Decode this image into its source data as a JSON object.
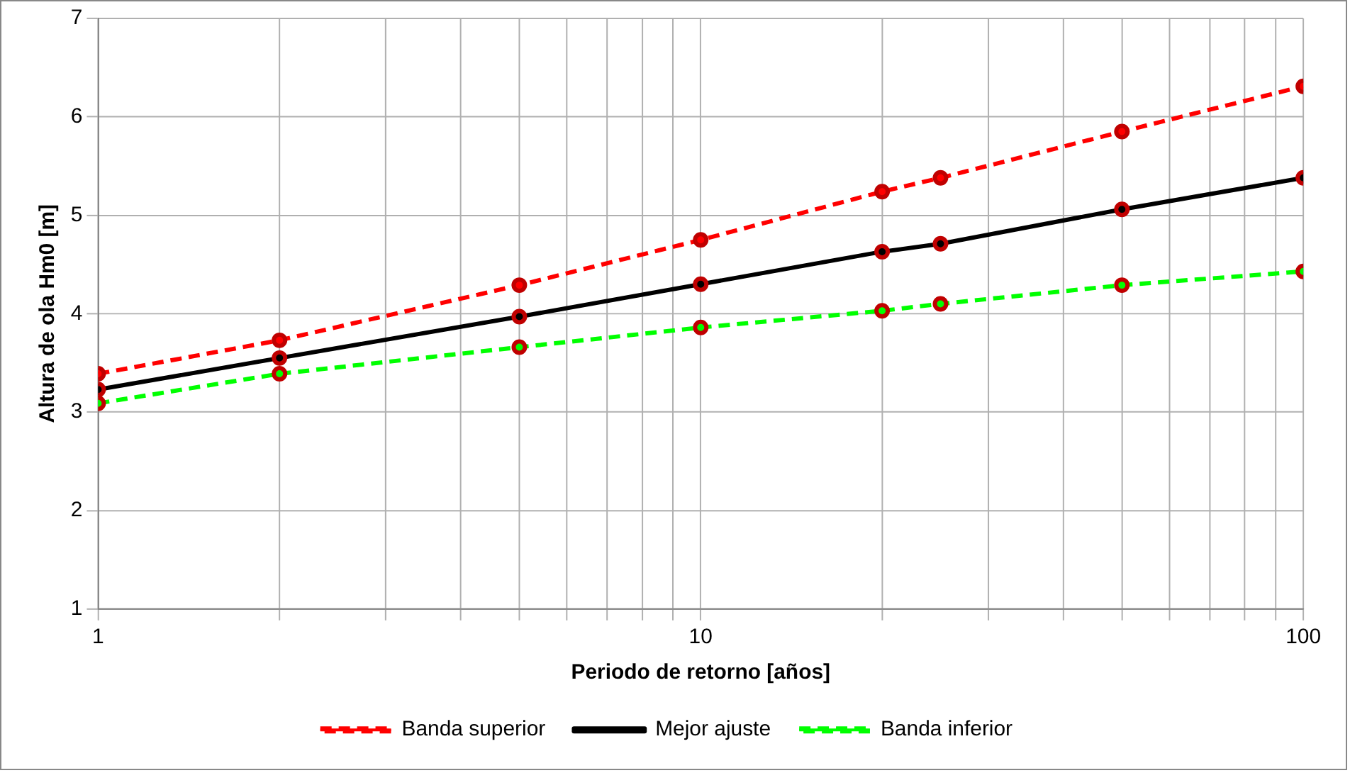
{
  "chart_data": {
    "type": "line",
    "xlabel": "Periodo de retorno [años]",
    "ylabel": "Altura de ola Hm0 [m]",
    "x": [
      1,
      2,
      5,
      10,
      20,
      25,
      50,
      100
    ],
    "series": [
      {
        "name": "Banda superior",
        "color": "#ff0000",
        "line_style": "dashed",
        "values": [
          3.39,
          3.73,
          4.29,
          4.75,
          5.24,
          5.38,
          5.85,
          6.31
        ]
      },
      {
        "name": "Mejor ajuste",
        "color": "#000000",
        "line_style": "solid",
        "values": [
          3.23,
          3.55,
          3.97,
          4.3,
          4.63,
          4.71,
          5.06,
          5.38
        ]
      },
      {
        "name": "Banda inferior",
        "color": "#00ff00",
        "line_style": "dashed",
        "values": [
          3.09,
          3.39,
          3.66,
          3.86,
          4.03,
          4.1,
          4.29,
          4.43
        ]
      }
    ],
    "log": "x",
    "xlim": [
      1,
      100
    ],
    "ylim": [
      1,
      7
    ],
    "xticks": [
      1,
      {
        "value": 2,
        "label": null
      },
      {
        "value": 3,
        "label": null
      },
      {
        "value": 4,
        "label": null
      },
      {
        "value": 5,
        "label": null
      },
      {
        "value": 6,
        "label": null
      },
      {
        "value": 7,
        "label": null
      },
      {
        "value": 8,
        "label": null
      },
      {
        "value": 9,
        "label": null
      },
      10,
      {
        "value": 20,
        "label": null
      },
      {
        "value": 30,
        "label": null
      },
      {
        "value": 40,
        "label": null
      },
      {
        "value": 50,
        "label": null
      },
      {
        "value": 60,
        "label": null
      },
      {
        "value": 70,
        "label": null
      },
      {
        "value": 80,
        "label": null
      },
      {
        "value": 90,
        "label": null
      },
      100
    ],
    "yticks": [
      1,
      2,
      3,
      4,
      5,
      6,
      7
    ],
    "grid": true,
    "legend": "bottom",
    "marker": "circle"
  }
}
